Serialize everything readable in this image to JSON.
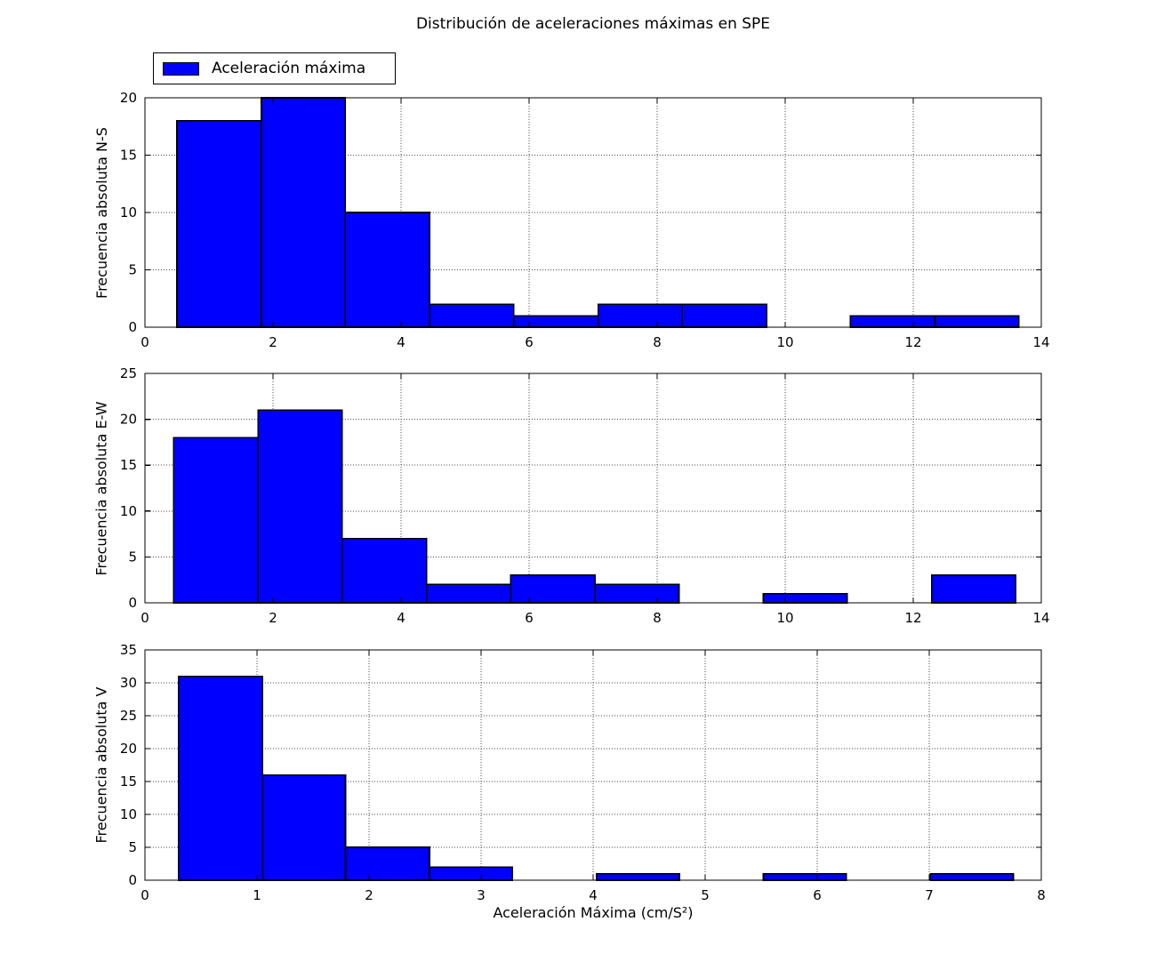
{
  "figure": {
    "title": "Distribución de aceleraciones máximas en SPE",
    "xlabel": "Aceleración Máxima (cm/S²)",
    "background_color": "#ffffff",
    "bar_color": "#0000ff",
    "bar_edge_color": "#000000",
    "grid_color": "#4a4a4a",
    "axis_color": "#000000",
    "grid_style": "dotted"
  },
  "legend": {
    "label": "Aceleración máxima",
    "swatch_color": "#0000ff",
    "position": "upper-left-above-first-axes"
  },
  "chart_data": [
    {
      "type": "bar",
      "subtype": "histogram",
      "ylabel": "Frecuencia absoluta N-S",
      "xlim": [
        0,
        14
      ],
      "ylim": [
        0,
        20
      ],
      "xticks": [
        0,
        2,
        4,
        6,
        8,
        10,
        12,
        14
      ],
      "yticks": [
        0,
        5,
        10,
        15,
        20
      ],
      "grid": true,
      "bin_edges": [
        0.5,
        1.82,
        3.13,
        4.45,
        5.76,
        7.08,
        8.39,
        9.71,
        11.02,
        12.34,
        13.65
      ],
      "values": [
        18,
        20,
        10,
        2,
        1,
        2,
        2,
        0,
        1,
        1
      ]
    },
    {
      "type": "bar",
      "subtype": "histogram",
      "ylabel": "Frecuencia absoluta E-W",
      "xlim": [
        0,
        14
      ],
      "ylim": [
        0,
        25
      ],
      "xticks": [
        0,
        2,
        4,
        6,
        8,
        10,
        12,
        14
      ],
      "yticks": [
        0,
        5,
        10,
        15,
        20,
        25
      ],
      "grid": true,
      "bin_edges": [
        0.45,
        1.77,
        3.08,
        4.4,
        5.71,
        7.03,
        8.34,
        9.66,
        10.97,
        12.29,
        13.6
      ],
      "values": [
        18,
        21,
        7,
        2,
        3,
        2,
        0,
        1,
        0,
        3
      ]
    },
    {
      "type": "bar",
      "subtype": "histogram",
      "ylabel": "Frecuencia absoluta V",
      "xlabel": "Aceleración Máxima (cm/S²)",
      "xlim": [
        0,
        8
      ],
      "ylim": [
        0,
        35
      ],
      "xticks": [
        0,
        1,
        2,
        3,
        4,
        5,
        6,
        7,
        8
      ],
      "yticks": [
        0,
        5,
        10,
        15,
        20,
        25,
        30,
        35
      ],
      "grid": true,
      "bin_edges": [
        0.3,
        1.05,
        1.79,
        2.54,
        3.28,
        4.03,
        4.77,
        5.52,
        6.26,
        7.01,
        7.75
      ],
      "values": [
        31,
        16,
        5,
        2,
        0,
        1,
        0,
        1,
        0,
        1
      ]
    }
  ]
}
